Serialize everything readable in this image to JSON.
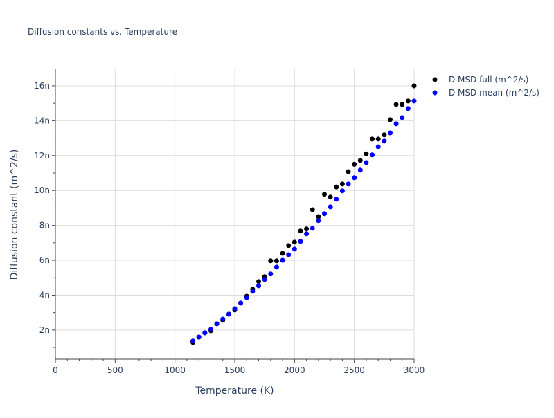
{
  "chart_data": {
    "type": "scatter",
    "title": "Diffusion constants vs. Temperature",
    "xlabel": "Temperature (K)",
    "ylabel": "Diffusion constant (m^2/s)",
    "xlim": [
      0,
      3000
    ],
    "ylim": [
      3.3e-10,
      1.695e-08
    ],
    "grid": true,
    "legend_position": "top-right-outside",
    "x_ticks": [
      0,
      500,
      1000,
      1500,
      2000,
      2500,
      3000
    ],
    "x_tick_labels": [
      "0",
      "500",
      "1000",
      "1500",
      "2000",
      "2500",
      "3000"
    ],
    "y_ticks": [
      2e-09,
      4e-09,
      6e-09,
      8e-09,
      1e-08,
      1.2e-08,
      1.4e-08,
      1.6e-08
    ],
    "y_tick_labels": [
      "2n",
      "4n",
      "6n",
      "8n",
      "10n",
      "12n",
      "14n",
      "16n"
    ],
    "x": [
      1150,
      1200,
      1250,
      1300,
      1350,
      1400,
      1450,
      1500,
      1550,
      1600,
      1650,
      1700,
      1750,
      1800,
      1850,
      1900,
      1950,
      2000,
      2050,
      2100,
      2150,
      2200,
      2250,
      2300,
      2350,
      2400,
      2450,
      2500,
      2550,
      2600,
      2650,
      2700,
      2750,
      2800,
      2850,
      2900,
      2950,
      3000
    ],
    "series": [
      {
        "name": "D MSD full (m^2/s)",
        "color": "#000000",
        "values": [
          1.29e-09,
          1.6e-09,
          1.84e-09,
          1.96e-09,
          2.36e-09,
          2.56e-09,
          2.91e-09,
          3.15e-09,
          3.55e-09,
          3.94e-09,
          4.34e-09,
          4.78e-09,
          5.06e-09,
          5.97e-09,
          5.97e-09,
          6.4e-09,
          6.84e-09,
          7.04e-09,
          7.68e-09,
          7.8e-09,
          8.9e-09,
          8.5e-09,
          9.78e-09,
          9.62e-09,
          1.02e-08,
          1.037e-08,
          1.108e-08,
          1.15e-08,
          1.172e-08,
          1.21e-08,
          1.295e-08,
          1.295e-08,
          1.319e-08,
          1.406e-08,
          1.493e-08,
          1.493e-08,
          1.513e-08,
          1.6e-08
        ]
      },
      {
        "name": "D MSD mean (m^2/s)",
        "color": "#0000ff",
        "values": [
          1.37e-09,
          1.6e-09,
          1.84e-09,
          2.04e-09,
          2.36e-09,
          2.63e-09,
          2.91e-09,
          3.23e-09,
          3.55e-09,
          3.86e-09,
          4.22e-09,
          4.54e-09,
          4.9e-09,
          5.22e-09,
          5.61e-09,
          6e-09,
          6.32e-09,
          6.64e-09,
          7.08e-09,
          7.52e-09,
          7.83e-09,
          8.27e-09,
          8.67e-09,
          9.06e-09,
          9.5e-09,
          9.98e-09,
          1.037e-08,
          1.073e-08,
          1.117e-08,
          1.16e-08,
          1.204e-08,
          1.25e-08,
          1.283e-08,
          1.33e-08,
          1.382e-08,
          1.418e-08,
          1.47e-08,
          1.513e-08
        ]
      }
    ]
  }
}
